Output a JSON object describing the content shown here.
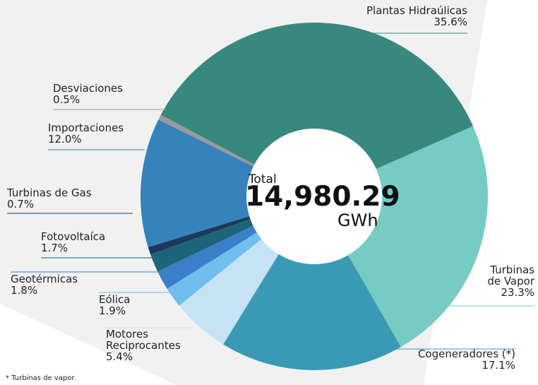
{
  "chart_data": {
    "type": "donut",
    "categories": [
      "Plantas Hidraúlicas",
      "Turbinas\nde Vapor",
      "Cogeneradores (*)",
      "Motores\nReciprocantes",
      "Eólica",
      "Geotérmicas",
      "Fotovoltaíca",
      "Turbinas de Gas",
      "Importaciones",
      "Desviaciones"
    ],
    "values": [
      35.6,
      23.3,
      17.1,
      5.4,
      1.9,
      1.8,
      1.7,
      0.7,
      12.0,
      0.5
    ],
    "value_labels": [
      "35.6%",
      "23.3%",
      "17.1%",
      "5.4%",
      "1.9%",
      "1.8%",
      "1.7%",
      "0.7%",
      "12.0%",
      "0.5%"
    ],
    "colors": [
      "#37887e",
      "#76cbc4",
      "#3a9ab5",
      "#c5e3f5",
      "#6fbfee",
      "#3a7fc8",
      "#1e6478",
      "#1c3a5c",
      "#3582bd",
      "#9a9a9a"
    ],
    "center_title": "Total",
    "center_value": "14,980.29",
    "center_unit": "GWh",
    "footnote": "* Turbinas de vapor."
  }
}
